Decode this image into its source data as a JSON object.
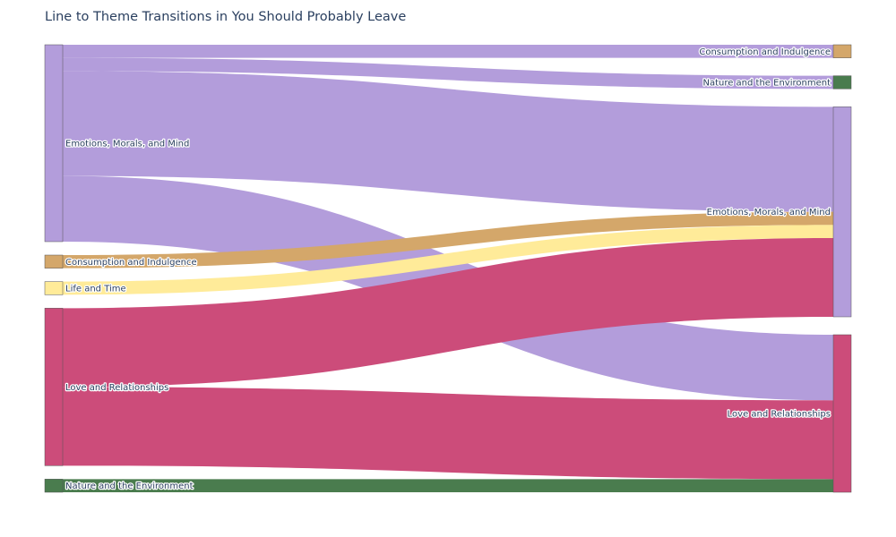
{
  "chart_data": {
    "type": "sankey",
    "title": "Line to Theme Transitions in You Should Probably Leave",
    "source_nodes": [
      {
        "id": "s_emotions",
        "label": "Emotions, Morals, and Mind",
        "color": "#b39ddb"
      },
      {
        "id": "s_consumption",
        "label": "Consumption and Indulgence",
        "color": "#d4a76a"
      },
      {
        "id": "s_life",
        "label": "Life and Time",
        "color": "#ffeb99"
      },
      {
        "id": "s_love",
        "label": "Love and Relationships",
        "color": "#cc4c7a"
      },
      {
        "id": "s_nature",
        "label": "Nature and the Environment",
        "color": "#4a7c4e"
      }
    ],
    "target_nodes": [
      {
        "id": "t_consumption",
        "label": "Consumption and Indulgence",
        "color": "#d4a76a"
      },
      {
        "id": "t_nature",
        "label": "Nature and the Environment",
        "color": "#4a7c4e"
      },
      {
        "id": "t_emotions",
        "label": "Emotions, Morals, and Mind",
        "color": "#b39ddb"
      },
      {
        "id": "t_love",
        "label": "Love and Relationships",
        "color": "#cc4c7a"
      }
    ],
    "links": [
      {
        "source": "s_emotions",
        "target": "t_consumption",
        "value": 1
      },
      {
        "source": "s_emotions",
        "target": "t_nature",
        "value": 1
      },
      {
        "source": "s_emotions",
        "target": "t_emotions",
        "value": 8
      },
      {
        "source": "s_emotions",
        "target": "t_love",
        "value": 5
      },
      {
        "source": "s_consumption",
        "target": "t_emotions",
        "value": 1
      },
      {
        "source": "s_life",
        "target": "t_emotions",
        "value": 1
      },
      {
        "source": "s_love",
        "target": "t_emotions",
        "value": 6
      },
      {
        "source": "s_love",
        "target": "t_love",
        "value": 6
      },
      {
        "source": "s_nature",
        "target": "t_love",
        "value": 1
      }
    ]
  }
}
